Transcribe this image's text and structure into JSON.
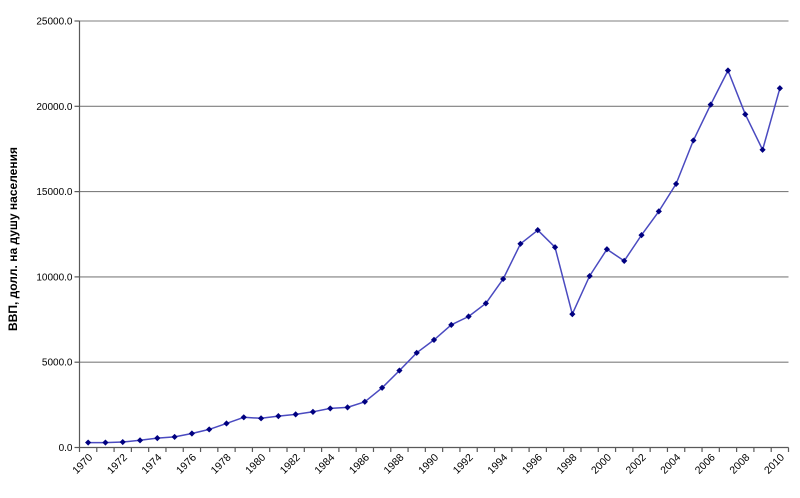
{
  "chart_data": {
    "type": "line",
    "title": "",
    "xlabel": "",
    "ylabel": "ВВП, долл. на душу населения",
    "x": [
      1970,
      1971,
      1972,
      1973,
      1974,
      1975,
      1976,
      1977,
      1978,
      1979,
      1980,
      1981,
      1982,
      1983,
      1984,
      1985,
      1986,
      1987,
      1988,
      1989,
      1990,
      1991,
      1992,
      1993,
      1994,
      1995,
      1996,
      1997,
      1998,
      1999,
      2000,
      2001,
      2002,
      2003,
      2004,
      2005,
      2006,
      2007,
      2008,
      2009,
      2010
    ],
    "values": [
      290,
      290,
      320,
      420,
      550,
      620,
      820,
      1060,
      1410,
      1770,
      1710,
      1840,
      1940,
      2090,
      2290,
      2350,
      2680,
      3500,
      4510,
      5550,
      6310,
      7190,
      7680,
      8450,
      9880,
      11940,
      12740,
      11740,
      7820,
      10050,
      11620,
      10940,
      12450,
      13840,
      15450,
      18000,
      20100,
      22100,
      19530,
      17450,
      21060
    ],
    "ylim": [
      0,
      25000
    ],
    "ytick_step": 5000,
    "ytick_labels": [
      "0.0",
      "5000.0",
      "10000.0",
      "15000.0",
      "20000.0",
      "25000.0"
    ],
    "xtick_labels": [
      "1970",
      "1972",
      "1974",
      "1976",
      "1978",
      "1980",
      "1982",
      "1984",
      "1986",
      "1988",
      "1990",
      "1992",
      "1994",
      "1996",
      "1998",
      "2000",
      "2002",
      "2004",
      "2006",
      "2008",
      "2010"
    ],
    "xtick_label_every": 2,
    "grid": "horizontal-only",
    "legend": "none",
    "marker": "diamond",
    "colors": {
      "line": "#4a4ac0",
      "marker": "#000080",
      "gridline": "#7f7f7f",
      "axis": "#595959",
      "text": "#000000",
      "background": "#ffffff"
    }
  }
}
